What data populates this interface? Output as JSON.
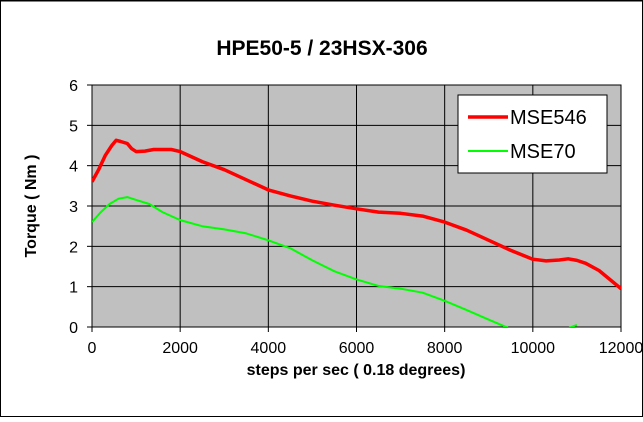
{
  "chart_data": {
    "type": "line",
    "title": "HPE50-5 / 23HSX-306",
    "xlabel": "steps per sec ( 0.18 degrees)",
    "ylabel": "Torque ( Nm )",
    "xlim": [
      0,
      12000
    ],
    "ylim": [
      0,
      6
    ],
    "x_ticks": [
      0,
      2000,
      4000,
      6000,
      8000,
      10000,
      12000
    ],
    "y_ticks": [
      0,
      1,
      2,
      3,
      4,
      5,
      6
    ],
    "x_tick_labels": [
      "0",
      "2000",
      "4000",
      "6000",
      "8000",
      "10000",
      "12000"
    ],
    "y_tick_labels": [
      "0",
      "1",
      "2",
      "3",
      "4",
      "5",
      "6"
    ],
    "grid": true,
    "legend_position": "top-right",
    "plot_background": "#c0c0c0",
    "series": [
      {
        "name": "MSE546",
        "color": "#ff0000",
        "points": [
          [
            0,
            3.6
          ],
          [
            150,
            3.9
          ],
          [
            300,
            4.25
          ],
          [
            450,
            4.5
          ],
          [
            550,
            4.63
          ],
          [
            650,
            4.6
          ],
          [
            800,
            4.55
          ],
          [
            900,
            4.42
          ],
          [
            1000,
            4.35
          ],
          [
            1200,
            4.36
          ],
          [
            1400,
            4.4
          ],
          [
            1600,
            4.4
          ],
          [
            1800,
            4.4
          ],
          [
            2000,
            4.35
          ],
          [
            2500,
            4.1
          ],
          [
            3000,
            3.9
          ],
          [
            3500,
            3.65
          ],
          [
            4000,
            3.4
          ],
          [
            4500,
            3.25
          ],
          [
            5000,
            3.12
          ],
          [
            5500,
            3.02
          ],
          [
            6000,
            2.93
          ],
          [
            6500,
            2.85
          ],
          [
            7000,
            2.82
          ],
          [
            7500,
            2.75
          ],
          [
            8000,
            2.6
          ],
          [
            8500,
            2.4
          ],
          [
            9000,
            2.15
          ],
          [
            9500,
            1.9
          ],
          [
            10000,
            1.68
          ],
          [
            10300,
            1.64
          ],
          [
            10600,
            1.66
          ],
          [
            10800,
            1.69
          ],
          [
            11000,
            1.65
          ],
          [
            11200,
            1.58
          ],
          [
            11500,
            1.4
          ],
          [
            12000,
            0.95
          ]
        ]
      },
      {
        "name": "MSE70",
        "color": "#00ff00",
        "points": [
          [
            0,
            2.6
          ],
          [
            200,
            2.85
          ],
          [
            400,
            3.05
          ],
          [
            600,
            3.18
          ],
          [
            800,
            3.22
          ],
          [
            1000,
            3.15
          ],
          [
            1300,
            3.05
          ],
          [
            1600,
            2.85
          ],
          [
            2000,
            2.65
          ],
          [
            2500,
            2.5
          ],
          [
            3000,
            2.42
          ],
          [
            3500,
            2.32
          ],
          [
            4000,
            2.15
          ],
          [
            4500,
            1.95
          ],
          [
            5000,
            1.65
          ],
          [
            5500,
            1.38
          ],
          [
            6000,
            1.18
          ],
          [
            6500,
            1.02
          ],
          [
            7000,
            0.95
          ],
          [
            7500,
            0.85
          ],
          [
            8000,
            0.65
          ],
          [
            8500,
            0.42
          ],
          [
            9000,
            0.18
          ],
          [
            9500,
            -0.05
          ],
          [
            10000,
            -0.3
          ],
          [
            10500,
            -0.15
          ],
          [
            11000,
            0.05
          ]
        ]
      }
    ]
  }
}
